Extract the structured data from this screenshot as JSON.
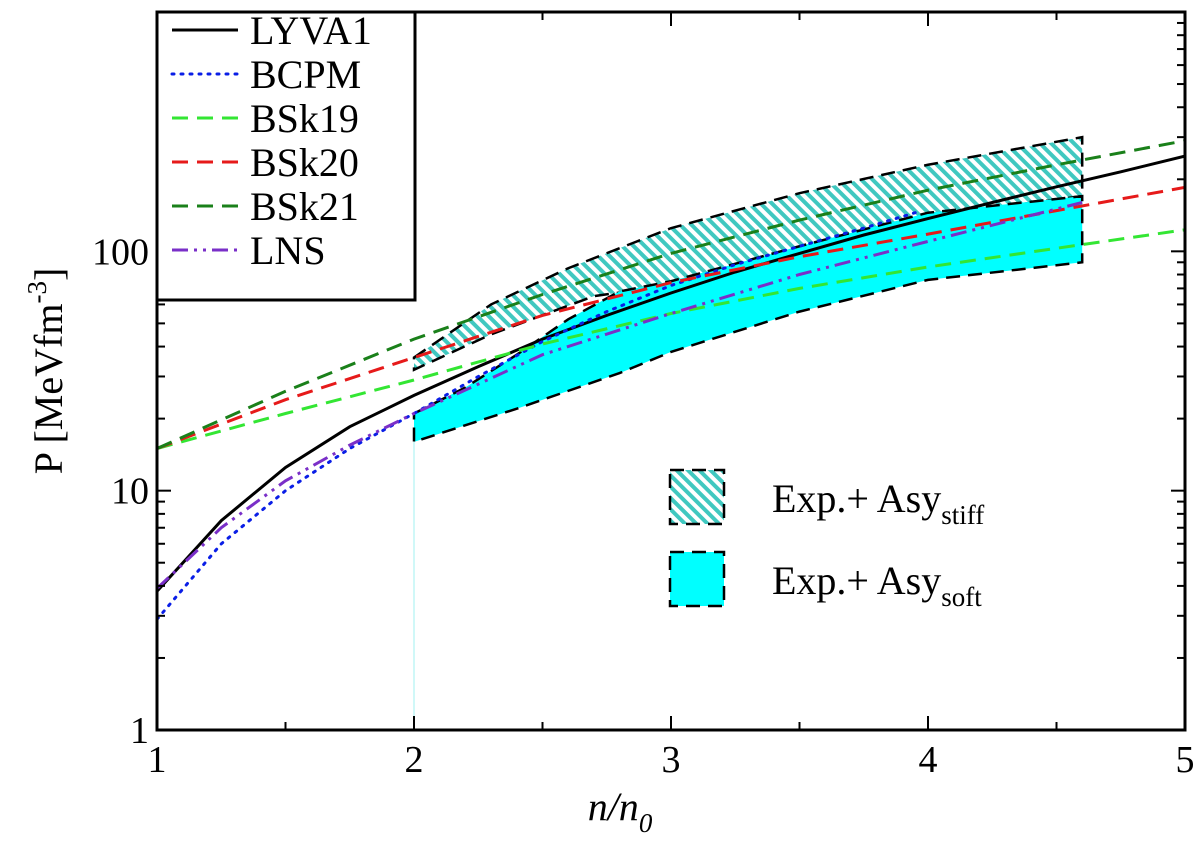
{
  "chart_data": {
    "type": "line",
    "xlabel": "n/n",
    "xlabel_sub": "0",
    "ylabel": "P [MeVfm",
    "ylabel_sup": "-3",
    "ylabel_close": "]",
    "xlim": [
      1,
      5
    ],
    "ylim": [
      1,
      1000
    ],
    "yscale": "log",
    "x_ticks": [
      {
        "value": 1,
        "label": "1"
      },
      {
        "value": 2,
        "label": "2"
      },
      {
        "value": 3,
        "label": "3"
      },
      {
        "value": 4,
        "label": "4"
      },
      {
        "value": 5,
        "label": "5"
      }
    ],
    "y_ticks": [
      {
        "value": 1,
        "label": "1"
      },
      {
        "value": 10,
        "label": "10"
      },
      {
        "value": 100,
        "label": "100"
      }
    ],
    "legend_position": "top-left",
    "series": [
      {
        "name": "LYVA1",
        "color": "#000000",
        "style": "solid",
        "x": [
          1.0,
          1.25,
          1.5,
          1.75,
          2.0,
          2.25,
          2.5,
          2.75,
          3.0,
          3.25,
          3.5,
          3.75,
          4.0,
          4.25,
          4.5,
          4.75,
          5.0
        ],
        "y": [
          3.8,
          7.5,
          12.5,
          18.5,
          25,
          33,
          43,
          54,
          67,
          82,
          98,
          117,
          137,
          160,
          186,
          215,
          250
        ]
      },
      {
        "name": "BCPM",
        "color": "#0a1ee6",
        "style": "dotted",
        "x": [
          1.0,
          1.25,
          1.5,
          1.75,
          2.0,
          2.25,
          2.5,
          2.75,
          3.0,
          3.25,
          3.5,
          3.75,
          3.95
        ],
        "y": [
          2.9,
          6.0,
          10.0,
          15.0,
          21,
          30,
          42,
          56,
          72,
          88,
          105,
          125,
          145
        ]
      },
      {
        "name": "BSk19",
        "color": "#33e633",
        "style": "dashed",
        "x": [
          1.0,
          1.5,
          2.0,
          2.5,
          3.0,
          3.5,
          4.0,
          4.5,
          5.0
        ],
        "y": [
          15,
          21,
          29,
          41,
          55,
          70,
          86,
          103,
          123
        ]
      },
      {
        "name": "BSk20",
        "color": "#e61a1a",
        "style": "dashed",
        "x": [
          1.0,
          1.5,
          2.0,
          2.5,
          3.0,
          3.5,
          4.0,
          4.5,
          5.0
        ],
        "y": [
          15,
          24,
          36,
          54,
          74,
          95,
          118,
          148,
          185
        ]
      },
      {
        "name": "BSk21",
        "color": "#1a801a",
        "style": "dashed",
        "x": [
          1.0,
          1.5,
          2.0,
          2.5,
          3.0,
          3.5,
          4.0,
          4.5,
          5.0
        ],
        "y": [
          15,
          26,
          43,
          66,
          98,
          135,
          180,
          230,
          290
        ]
      },
      {
        "name": "LNS",
        "color": "#7a2fc8",
        "style": "dashdotdot",
        "x": [
          1.0,
          1.25,
          1.5,
          1.75,
          2.0,
          2.5,
          3.0,
          3.5,
          4.0,
          4.6
        ],
        "y": [
          3.9,
          7.0,
          11.0,
          15.5,
          21,
          37,
          55,
          80,
          110,
          160
        ]
      }
    ],
    "bands": [
      {
        "name": "Exp.+ Asy",
        "subscript": "stiff",
        "fill": "hatched",
        "color": "#40c8c0",
        "upper": {
          "x": [
            2.0,
            2.3,
            2.6,
            3.0,
            3.5,
            4.0,
            4.6
          ],
          "y": [
            36,
            60,
            85,
            125,
            175,
            230,
            300
          ]
        },
        "lower": {
          "x": [
            2.0,
            2.3,
            2.7,
            3.0,
            3.5,
            4.0,
            4.6
          ],
          "y": [
            32,
            45,
            65,
            72,
            100,
            140,
            170
          ]
        }
      },
      {
        "name": "Exp.+ Asy",
        "subscript": "soft",
        "fill": "solid",
        "color": "#00ffff",
        "upper": {
          "x": [
            2.0,
            2.2,
            2.4,
            2.6,
            2.8,
            3.0,
            3.5,
            4.0,
            4.6
          ],
          "y": [
            21,
            27,
            37,
            52,
            68,
            75,
            105,
            145,
            170
          ]
        },
        "lower": {
          "x": [
            2.0,
            2.4,
            2.8,
            3.0,
            3.5,
            4.0,
            4.6
          ],
          "y": [
            16,
            22,
            31,
            38,
            56,
            76,
            90
          ]
        }
      }
    ],
    "reference_line": {
      "x": 2.0,
      "color": "#a0f0f0"
    }
  }
}
